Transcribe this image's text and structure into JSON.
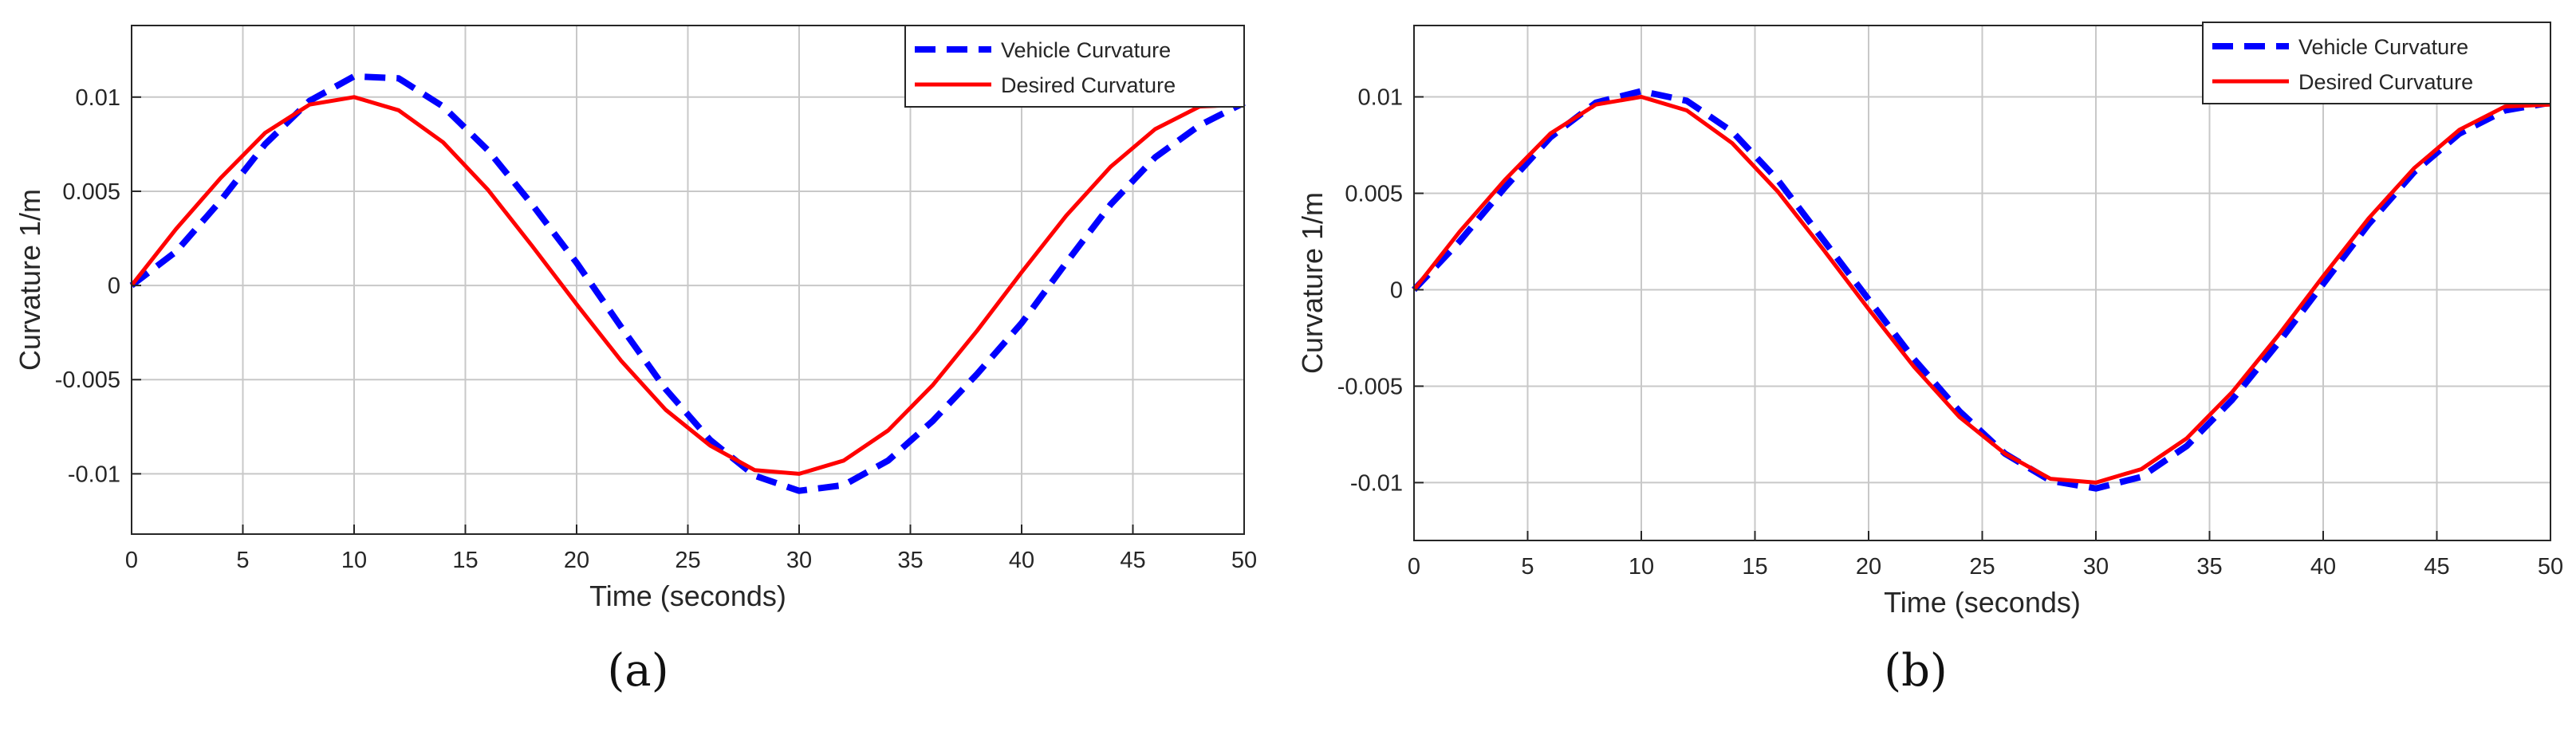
{
  "chart_data": [
    {
      "type": "line",
      "panel_label": "(a)",
      "xlabel": "Time (seconds)",
      "ylabel": "Curvature 1/m",
      "xlim": [
        0,
        50
      ],
      "ylim": [
        -0.0132,
        0.0138
      ],
      "x_ticks": [
        0,
        5,
        10,
        15,
        20,
        25,
        30,
        35,
        40,
        45,
        50
      ],
      "x_tick_labels": [
        "0",
        "5",
        "10",
        "15",
        "20",
        "25",
        "30",
        "35",
        "40",
        "45",
        "50"
      ],
      "y_ticks": [
        -0.01,
        -0.005,
        0,
        0.005,
        0.01
      ],
      "y_tick_labels": [
        "-0.01",
        "-0.005",
        "0",
        "0.005",
        "0.01"
      ],
      "grid": true,
      "legend": "top-right",
      "series": [
        {
          "name": "Vehicle Curvature",
          "color": "#0000ff",
          "style": "dashed",
          "x": [
            0,
            2,
            4,
            6,
            8,
            10,
            12,
            14,
            16,
            18,
            20,
            22,
            24,
            26,
            28,
            30,
            32,
            34,
            36,
            38,
            40,
            42,
            44,
            46,
            48,
            50
          ],
          "y": [
            0.0,
            0.0018,
            0.0045,
            0.0075,
            0.0098,
            0.0111,
            0.011,
            0.0095,
            0.0072,
            0.0043,
            0.0012,
            -0.0022,
            -0.0055,
            -0.0082,
            -0.0101,
            -0.0109,
            -0.0106,
            -0.0093,
            -0.0072,
            -0.0047,
            -0.002,
            0.0012,
            0.0043,
            0.0068,
            0.0085,
            0.0097
          ]
        },
        {
          "name": "Desired Curvature",
          "color": "#ff0000",
          "style": "solid",
          "x": [
            0,
            2,
            4,
            6,
            8,
            10,
            12,
            14,
            16,
            18,
            20,
            22,
            24,
            26,
            28,
            30,
            32,
            34,
            36,
            38,
            40,
            42,
            44,
            46,
            48,
            50
          ],
          "y": [
            0.0,
            0.003,
            0.0057,
            0.0081,
            0.0096,
            0.01,
            0.0093,
            0.0076,
            0.0051,
            0.0021,
            -0.001,
            -0.004,
            -0.0066,
            -0.0085,
            -0.0098,
            -0.01,
            -0.0093,
            -0.0077,
            -0.0053,
            -0.0024,
            0.0007,
            0.0037,
            0.0063,
            0.0083,
            0.0095,
            0.0096
          ]
        }
      ]
    },
    {
      "type": "line",
      "panel_label": "(b)",
      "xlabel": "Time (seconds)",
      "ylabel": "Curvature 1/m",
      "xlim": [
        0,
        50
      ],
      "ylim": [
        -0.013,
        0.0137
      ],
      "x_ticks": [
        0,
        5,
        10,
        15,
        20,
        25,
        30,
        35,
        40,
        45,
        50
      ],
      "x_tick_labels": [
        "0",
        "5",
        "10",
        "15",
        "20",
        "25",
        "30",
        "35",
        "40",
        "45",
        "50"
      ],
      "y_ticks": [
        -0.01,
        -0.005,
        0,
        0.005,
        0.01
      ],
      "y_tick_labels": [
        "-0.01",
        "-0.005",
        "0",
        "0.005",
        "0.01"
      ],
      "grid": true,
      "legend": "top-right",
      "series": [
        {
          "name": "Vehicle Curvature",
          "color": "#0000ff",
          "style": "dashed",
          "x": [
            0,
            2,
            4,
            6,
            8,
            10,
            12,
            14,
            16,
            18,
            20,
            22,
            24,
            26,
            28,
            30,
            32,
            34,
            36,
            38,
            40,
            42,
            44,
            46,
            48,
            50
          ],
          "y": [
            0.0,
            0.0025,
            0.0053,
            0.0079,
            0.0097,
            0.0103,
            0.0098,
            0.0082,
            0.0057,
            0.0026,
            -0.0005,
            -0.0036,
            -0.0063,
            -0.0085,
            -0.0099,
            -0.0103,
            -0.0097,
            -0.0081,
            -0.0057,
            -0.0028,
            0.0003,
            0.0034,
            0.0061,
            0.0081,
            0.0093,
            0.0097
          ]
        },
        {
          "name": "Desired Curvature",
          "color": "#ff0000",
          "style": "solid",
          "x": [
            0,
            2,
            4,
            6,
            8,
            10,
            12,
            14,
            16,
            18,
            20,
            22,
            24,
            26,
            28,
            30,
            32,
            34,
            36,
            38,
            40,
            42,
            44,
            46,
            48,
            50
          ],
          "y": [
            0.0,
            0.003,
            0.0057,
            0.0081,
            0.0096,
            0.01,
            0.0093,
            0.0076,
            0.0051,
            0.0021,
            -0.001,
            -0.004,
            -0.0066,
            -0.0085,
            -0.0098,
            -0.01,
            -0.0093,
            -0.0077,
            -0.0053,
            -0.0024,
            0.0007,
            0.0037,
            0.0063,
            0.0083,
            0.0095,
            0.0096
          ]
        }
      ]
    }
  ]
}
